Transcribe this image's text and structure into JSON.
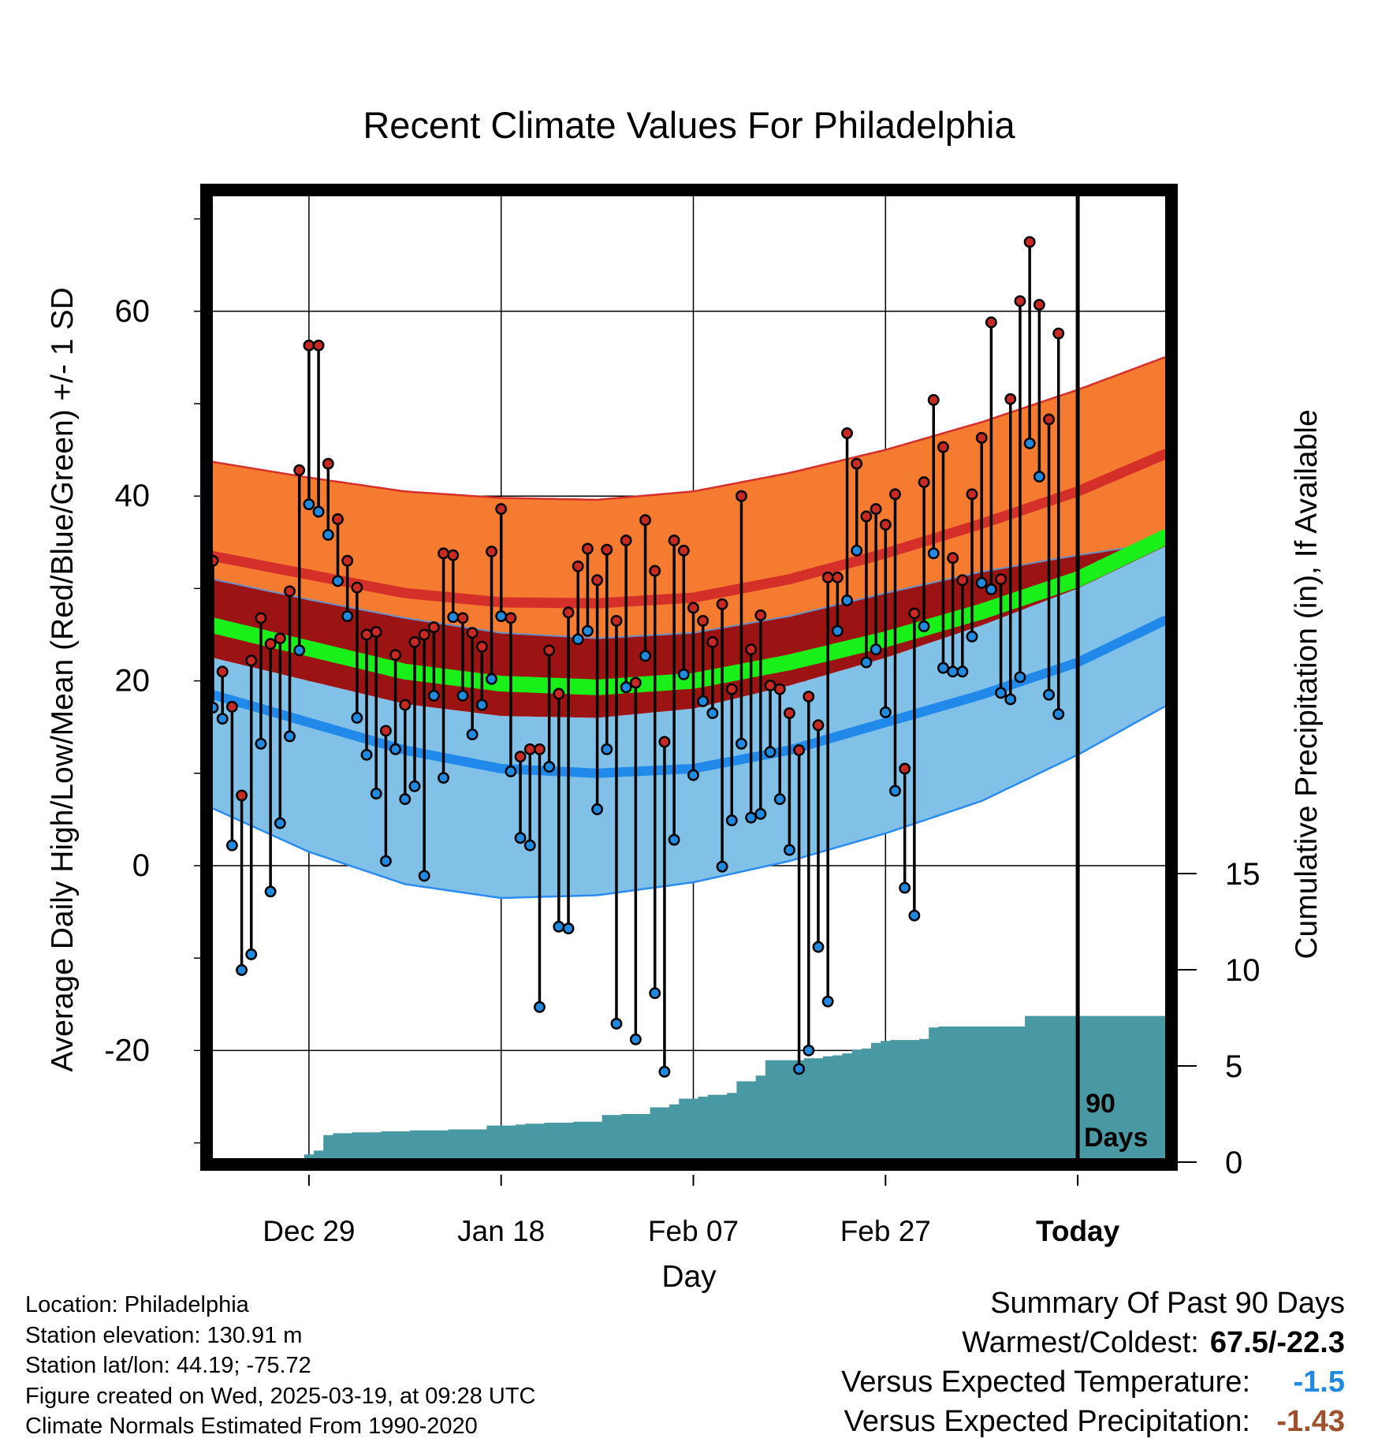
{
  "chart_data": {
    "type": "line",
    "title": "Recent Climate Values For Philadelphia",
    "xlabel": "Day",
    "ylabel": "Average Daily High/Low/Mean (Red/Blue/Green) +/- 1 SD",
    "y2label": "Cumulative Precipitation (in), If Available",
    "x_ticks": [
      "Dec 29",
      "Jan 18",
      "Feb 07",
      "Feb 27",
      "Today"
    ],
    "x_tick_days": [
      10,
      30,
      50,
      70,
      90
    ],
    "xlim": [
      -0.5,
      99.5
    ],
    "ylim": [
      -32,
      73
    ],
    "y_ticks": [
      -20,
      0,
      20,
      40,
      60
    ],
    "y2lim": [
      0,
      30
    ],
    "y2_ticks": [
      0,
      5,
      10,
      15
    ],
    "grid": true,
    "today_marker": {
      "day": 90,
      "label_line1": "90",
      "label_line2": "Days"
    },
    "normals": {
      "days": [
        0,
        10,
        20,
        30,
        40,
        50,
        60,
        70,
        80,
        90,
        99
      ],
      "high_mean": [
        33.5,
        31.5,
        29.5,
        28.5,
        28.4,
        29.0,
        31.0,
        33.8,
        37.0,
        40.5,
        44.5
      ],
      "high_sd_upper": [
        43.7,
        42.0,
        40.5,
        39.8,
        39.6,
        40.5,
        42.5,
        45.0,
        48.0,
        51.5,
        55.0
      ],
      "high_sd_lower": [
        31.0,
        28.8,
        26.8,
        25.2,
        24.6,
        25.2,
        27.0,
        29.5,
        31.8,
        33.6,
        35.0
      ],
      "mean": [
        26.0,
        23.5,
        21.0,
        19.7,
        19.3,
        20.0,
        22.0,
        24.5,
        27.5,
        31.0,
        35.5
      ],
      "low_mean": [
        18.5,
        15.5,
        12.5,
        10.5,
        10.0,
        10.5,
        12.5,
        15.5,
        18.5,
        22.0,
        26.5
      ],
      "low_sd_upper": [
        22.5,
        20.0,
        17.5,
        16.2,
        16.0,
        17.0,
        19.5,
        22.5,
        26.0,
        30.0,
        34.5
      ],
      "low_sd_lower": [
        6.2,
        1.5,
        -2.0,
        -3.5,
        -3.2,
        -1.8,
        0.5,
        3.5,
        7.0,
        12.0,
        17.2
      ]
    },
    "series": [
      {
        "name": "High",
        "color": "#c82a23",
        "values": [
          33.0,
          21.0,
          17.2,
          7.6,
          22.2,
          26.8,
          24.0,
          24.6,
          29.7,
          42.8,
          56.3,
          56.3,
          43.5,
          37.5,
          33.0,
          30.1,
          25.0,
          25.3,
          14.6,
          22.8,
          17.4,
          24.2,
          25.0,
          25.8,
          33.8,
          33.6,
          26.8,
          25.2,
          23.7,
          34.0,
          38.6,
          26.8,
          11.8,
          12.6,
          12.6,
          23.3,
          18.6,
          27.4,
          32.4,
          34.3,
          30.9,
          34.2,
          26.5,
          35.2,
          19.8,
          37.4,
          31.9,
          13.4,
          35.2,
          34.1,
          27.9,
          26.5,
          24.2,
          28.3,
          19.1,
          40.0,
          23.4,
          27.1,
          19.5,
          19.1,
          16.5,
          12.5,
          18.3,
          15.2,
          31.2,
          31.2,
          46.8,
          43.5,
          37.8,
          38.6,
          36.9,
          40.2,
          10.5,
          27.3,
          41.5,
          50.4,
          45.3,
          33.3,
          30.9,
          40.2,
          46.3,
          58.8,
          31.0,
          50.5,
          61.1,
          67.5,
          60.7,
          48.3,
          57.6
        ]
      },
      {
        "name": "Low",
        "color": "#1f8ae0",
        "values": [
          17.1,
          15.9,
          2.2,
          -11.3,
          -9.6,
          13.2,
          -2.8,
          4.6,
          14.0,
          23.3,
          39.1,
          38.3,
          35.8,
          30.8,
          27.0,
          16.0,
          12.0,
          7.8,
          0.5,
          12.6,
          7.2,
          8.6,
          -1.1,
          18.4,
          9.5,
          26.9,
          18.4,
          14.2,
          17.4,
          20.2,
          27.0,
          10.2,
          3.0,
          2.2,
          -15.3,
          10.7,
          -6.6,
          -6.8,
          24.5,
          25.4,
          6.1,
          12.6,
          -17.1,
          19.3,
          -18.8,
          22.7,
          -13.8,
          -22.3,
          2.8,
          20.7,
          9.8,
          17.8,
          16.5,
          -0.1,
          4.9,
          13.2,
          5.2,
          5.6,
          12.3,
          7.2,
          1.7,
          -22.0,
          -20.0,
          -8.8,
          -14.7,
          25.4,
          28.7,
          34.1,
          22.0,
          23.4,
          16.6,
          8.1,
          -2.4,
          -5.4,
          25.9,
          33.8,
          21.4,
          21.0,
          21.0,
          24.8,
          30.6,
          29.9,
          18.7,
          18.0,
          20.4,
          45.7,
          42.1,
          18.5,
          16.4
        ]
      },
      {
        "name": "Precipitation",
        "color": "#4899a3",
        "values": [
          0,
          0,
          0,
          0,
          0,
          0,
          0.05,
          0.05,
          0.05,
          0.05,
          0.4,
          0.6,
          1.4,
          1.5,
          1.5,
          1.55,
          1.55,
          1.55,
          1.6,
          1.6,
          1.6,
          1.65,
          1.65,
          1.65,
          1.65,
          1.7,
          1.7,
          1.7,
          1.7,
          1.9,
          1.9,
          1.9,
          1.95,
          2.0,
          2.0,
          2.05,
          2.05,
          2.05,
          2.1,
          2.1,
          2.1,
          2.45,
          2.45,
          2.5,
          2.5,
          2.5,
          2.85,
          2.85,
          3.0,
          3.3,
          3.3,
          3.4,
          3.5,
          3.5,
          3.6,
          4.2,
          4.2,
          4.5,
          5.3,
          5.3,
          5.3,
          5.3,
          5.4,
          5.4,
          5.5,
          5.55,
          5.65,
          5.85,
          5.9,
          6.2,
          6.3,
          6.35,
          6.35,
          6.35,
          6.4,
          7.0,
          7.05,
          7.05,
          7.05,
          7.05,
          7.05,
          7.05,
          7.05,
          7.05,
          7.05,
          7.6,
          7.6,
          7.6,
          7.6,
          7.6,
          7.6,
          7.6,
          7.6,
          7.6,
          7.6,
          7.6,
          7.6,
          7.6,
          7.6,
          7.6
        ]
      }
    ],
    "colors": {
      "high_band": "#f47b30",
      "high_mean": "#d52f2a",
      "between_band": "#9b1313",
      "mean_line": "#19ef19",
      "low_band": "#82c1e7",
      "low_mean": "#2089ea",
      "low_edge": "#2a8cf0",
      "precip": "#4899a3"
    }
  },
  "footer": {
    "location": "Location: Philadelphia",
    "elevation": "Station elevation: 130.91 m",
    "latlon": "Station lat/lon: 44.19; -75.72",
    "created": "Figure created on Wed, 2025-03-19, at 09:28 UTC",
    "normals": "Climate Normals Estimated From 1990-2020"
  },
  "summary": {
    "title": "Summary Of Past 90 Days",
    "warmest_label": "Warmest/Coldest:",
    "warmest_value": "67.5/-22.3",
    "temp_label": "Versus Expected Temperature:",
    "temp_value": "-1.5",
    "temp_color": "#1f8ae0",
    "precip_label": "Versus Expected Precipitation:",
    "precip_value": "-1.43",
    "precip_color": "#a0522d"
  }
}
